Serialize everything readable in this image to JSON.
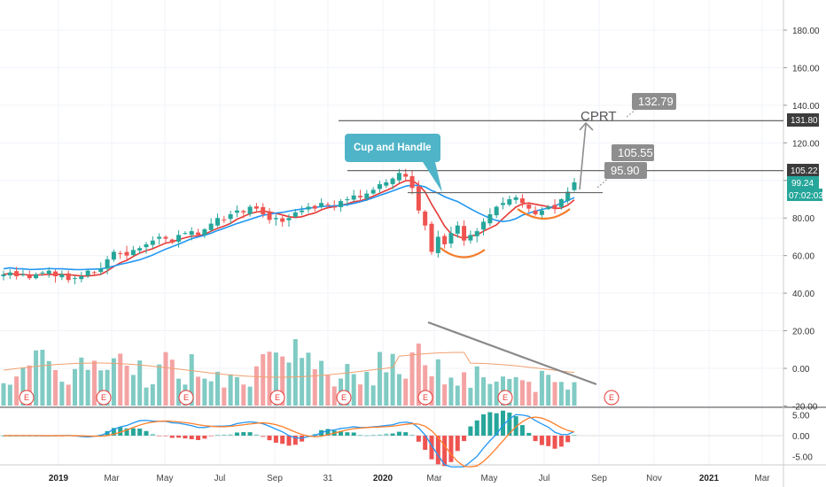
{
  "chart_data": {
    "type": "candlestick",
    "symbol": "CPRT",
    "colors": {
      "up": "#26a69a",
      "down": "#ef5350",
      "ma_fast": "#e53935",
      "ma_slow": "#2196f3",
      "vol_up": "#80cbc4",
      "vol_down": "#f4a3a3",
      "trend": "#888888",
      "cup": "#f57c2a",
      "macd": "#2196f3",
      "signal": "#ff7f2a",
      "label_box": "#8e8e8e",
      "callout": "#4fb4c8"
    },
    "price_axis": {
      "min": -20,
      "max": 190,
      "ticks": [
        -20,
        0,
        20,
        40,
        60,
        80,
        100,
        120,
        140,
        160,
        180
      ],
      "tick_labels": [
        "-20.00",
        "0.00",
        "20.00",
        "40.00",
        "60.00",
        "80.00",
        "100.00",
        "120.00",
        "140.00",
        "160.00",
        "180.00"
      ]
    },
    "macd_axis": {
      "min": -8,
      "max": 6,
      "ticks": [
        5,
        0,
        -5
      ],
      "tick_labels": [
        "5.00",
        "0.00",
        "-5.00"
      ]
    },
    "time_axis": [
      {
        "label": "2019",
        "year": true
      },
      {
        "label": "Mar"
      },
      {
        "label": "May"
      },
      {
        "label": "Jul"
      },
      {
        "label": "Sep"
      },
      {
        "label": "31"
      },
      {
        "label": "2020",
        "year": true
      },
      {
        "label": "Mar"
      },
      {
        "label": "May"
      },
      {
        "label": "Jul"
      },
      {
        "label": "Sep"
      },
      {
        "label": "Nov"
      },
      {
        "label": "2021",
        "year": true
      },
      {
        "label": "Mar"
      }
    ],
    "price_badges": {
      "resistance_high": "131.80",
      "resistance_mid": "105.22",
      "last_price": "99.24",
      "countdown": "07:02:03"
    },
    "annotations": {
      "callout": "Cup and Handle",
      "symbol_label": "CPRT",
      "target_high": "132.79",
      "target_mid": "105.55",
      "breakout": "95.90"
    },
    "levels": [
      131.8,
      105.22,
      93.5
    ],
    "earnings_marker": "E",
    "earnings_count": 8,
    "closes": [
      50,
      51,
      49,
      50,
      48,
      50,
      51,
      52,
      49,
      50,
      47,
      48,
      49,
      52,
      51,
      53,
      58,
      62,
      61,
      60,
      63,
      64,
      66,
      68,
      70,
      69,
      67,
      71,
      72,
      73,
      71,
      74,
      77,
      80,
      79,
      82,
      84,
      83,
      86,
      85,
      82,
      79,
      80,
      78,
      80,
      83,
      84,
      86,
      85,
      88,
      87,
      86,
      89,
      90,
      92,
      91,
      93,
      95,
      98,
      99,
      101,
      104,
      102,
      96,
      84,
      76,
      62,
      70,
      66,
      72,
      76,
      68,
      71,
      73,
      78,
      82,
      86,
      88,
      90,
      91,
      88,
      85,
      82,
      84,
      86,
      85,
      90,
      94,
      99
    ]
  }
}
